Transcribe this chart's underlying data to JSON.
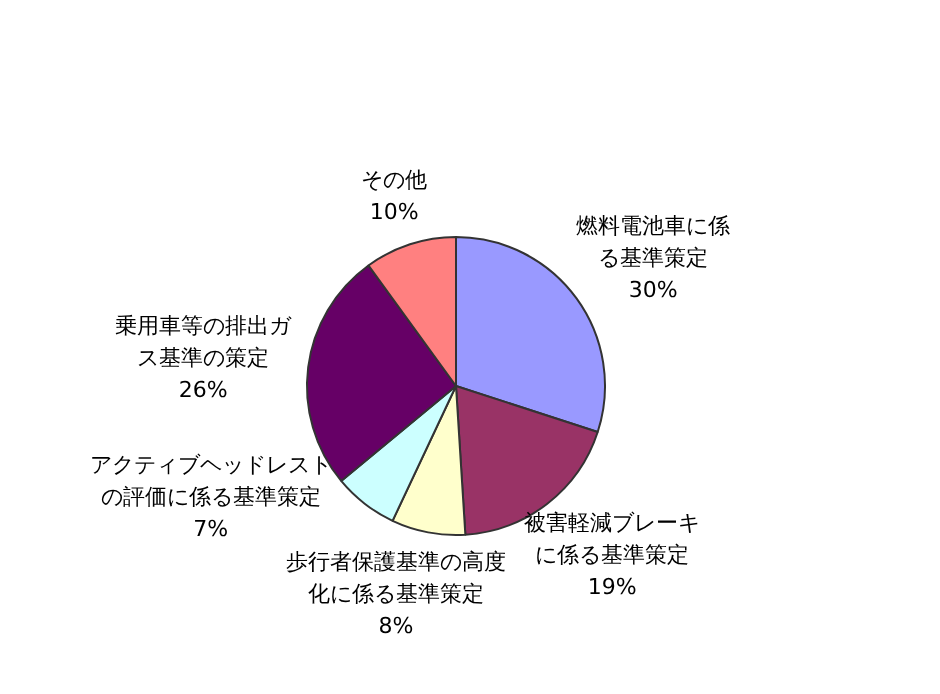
{
  "chart_data": {
    "type": "pie",
    "categories": [
      "燃料電池車に係る基準策定",
      "被害軽減ブレーキに係る基準策定",
      "歩行者保護基準の高度化に係る基準策定",
      "アクティブヘッドレストの評価に係る基準策定",
      "乗用車等の排出ガス基準の策定",
      "その他"
    ],
    "values": [
      30,
      19,
      8,
      7,
      26,
      10
    ],
    "value_labels": [
      "30%",
      "19%",
      "8%",
      "7%",
      "26%",
      "10%"
    ],
    "colors": [
      "#9999ff",
      "#993366",
      "#ffffcc",
      "#ccffff",
      "#660066",
      "#ff8080"
    ]
  }
}
